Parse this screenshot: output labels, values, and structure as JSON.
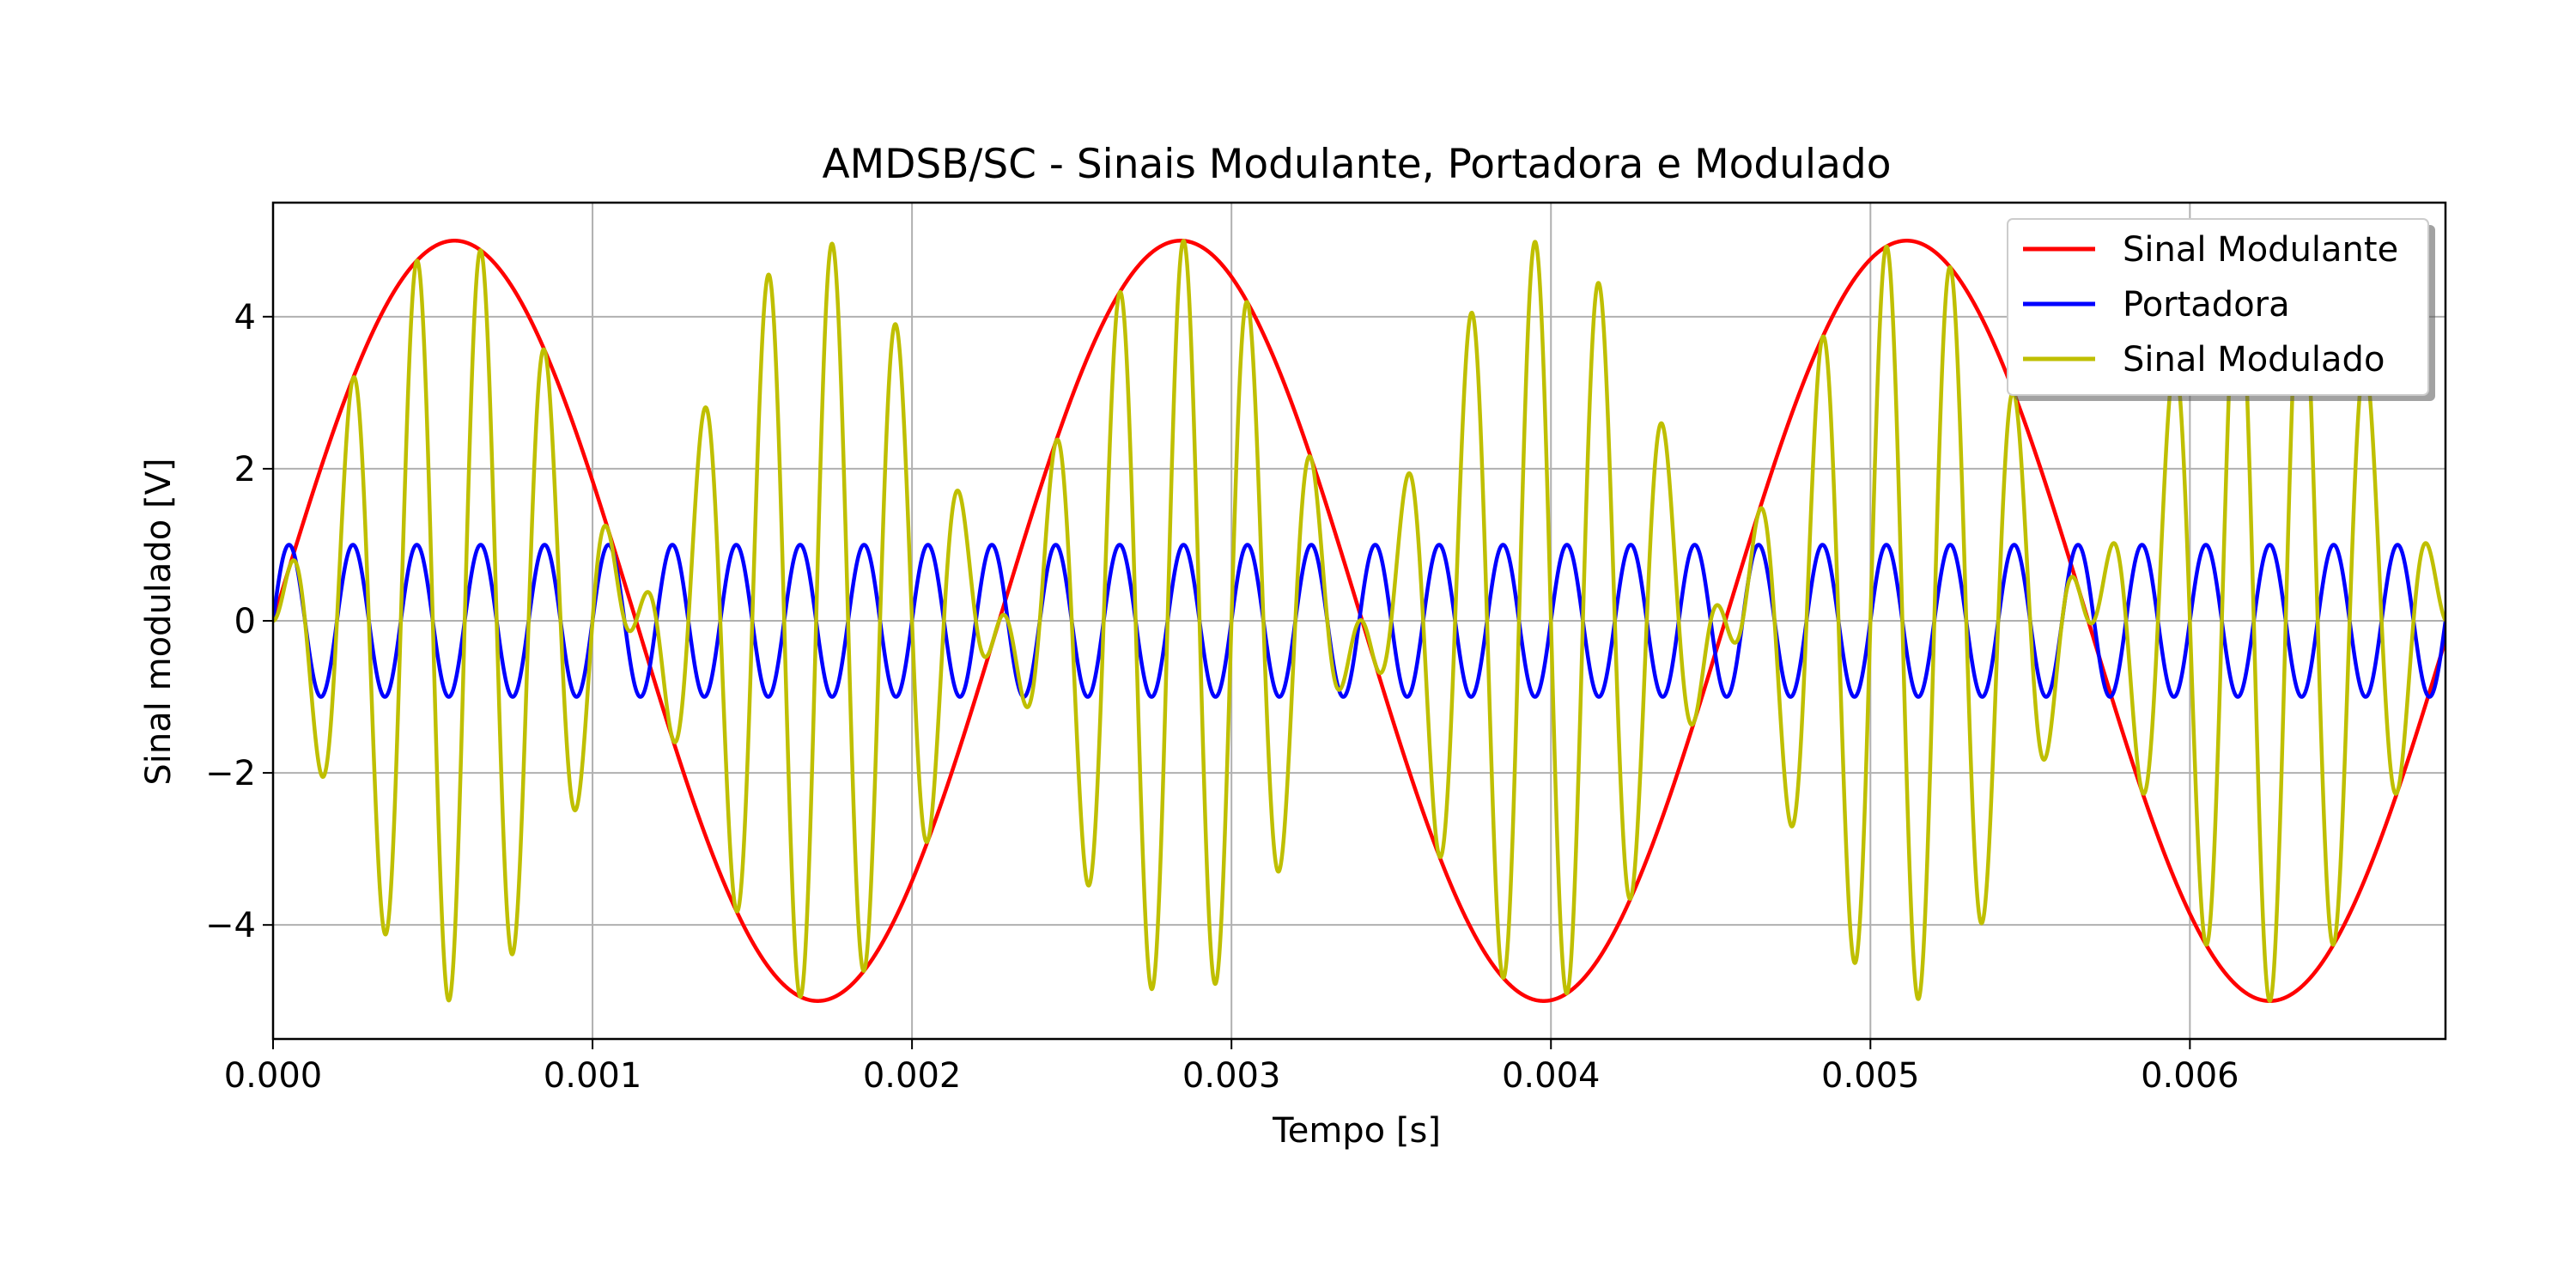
{
  "chart_data": {
    "type": "line",
    "title": "AMDSB/SC - Sinais Modulante, Portadora e Modulado",
    "xlabel": "Tempo [s]",
    "ylabel": "Sinal modulado [V]",
    "xlim": [
      0,
      0.0068
    ],
    "ylim": [
      -5.5,
      5.5
    ],
    "grid": true,
    "legend_position": "upper right",
    "xticks": [
      {
        "value": 0.0,
        "label": "0.000"
      },
      {
        "value": 0.001,
        "label": "0.001"
      },
      {
        "value": 0.002,
        "label": "0.002"
      },
      {
        "value": 0.003,
        "label": "0.003"
      },
      {
        "value": 0.004,
        "label": "0.004"
      },
      {
        "value": 0.005,
        "label": "0.005"
      },
      {
        "value": 0.006,
        "label": "0.006"
      }
    ],
    "yticks": [
      {
        "value": -4,
        "label": "−4"
      },
      {
        "value": -2,
        "label": "−2"
      },
      {
        "value": 0,
        "label": "0"
      },
      {
        "value": 2,
        "label": "2"
      },
      {
        "value": 4,
        "label": "4"
      }
    ],
    "series": [
      {
        "name": "Sinal Modulante",
        "color": "#ff0000",
        "function": "sine",
        "amplitude": 5,
        "frequency_hz": 440
      },
      {
        "name": "Portadora",
        "color": "#0000ff",
        "function": "sine",
        "amplitude": 1,
        "frequency_hz": 5000
      },
      {
        "name": "Sinal Modulado",
        "color": "#bfbf00",
        "function": "product",
        "amplitude": 5,
        "frequency_hz": [
          440,
          5000
        ]
      }
    ]
  }
}
